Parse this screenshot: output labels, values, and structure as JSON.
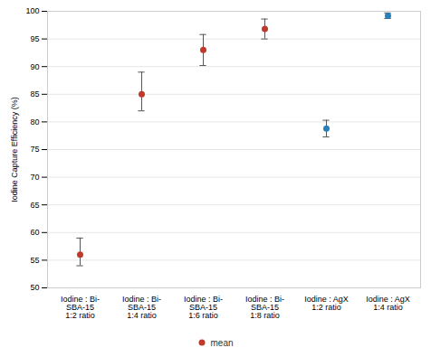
{
  "chart_data": {
    "type": "scatter",
    "categories": [
      "Iodine : Bi-\nSBA-15\n1:2 ratio",
      "Iodine : Bi-\nSBA-15\n1:4 ratio",
      "Iodine : Bi-\nSBA-15\n1:6 ratio",
      "Iodine : Bi-\nSBA-15\n1:8 ratio",
      "Iodine : AgX\n1:2 ratio",
      "Iodine : AgX\n1:4 ratio"
    ],
    "series": [
      {
        "name": "mean",
        "color": "#c0392b",
        "colors": [
          "#c0392b",
          "#c0392b",
          "#c0392b",
          "#c0392b",
          "#2980b9",
          "#2980b9"
        ],
        "values": [
          56.0,
          85.0,
          93.0,
          96.8,
          78.8,
          99.2
        ],
        "errors_upper": [
          3.0,
          4.0,
          2.8,
          1.8,
          1.5,
          0.5
        ],
        "errors_lower": [
          2.0,
          3.0,
          2.8,
          1.8,
          1.5,
          0.5
        ]
      }
    ],
    "ylabel": "Iodine Capture Efficiency (%)",
    "ylim": [
      50,
      100
    ],
    "yticks": [
      50,
      55,
      60,
      65,
      70,
      75,
      80,
      85,
      90,
      95,
      100
    ],
    "grid": true,
    "legend": "bottom"
  }
}
